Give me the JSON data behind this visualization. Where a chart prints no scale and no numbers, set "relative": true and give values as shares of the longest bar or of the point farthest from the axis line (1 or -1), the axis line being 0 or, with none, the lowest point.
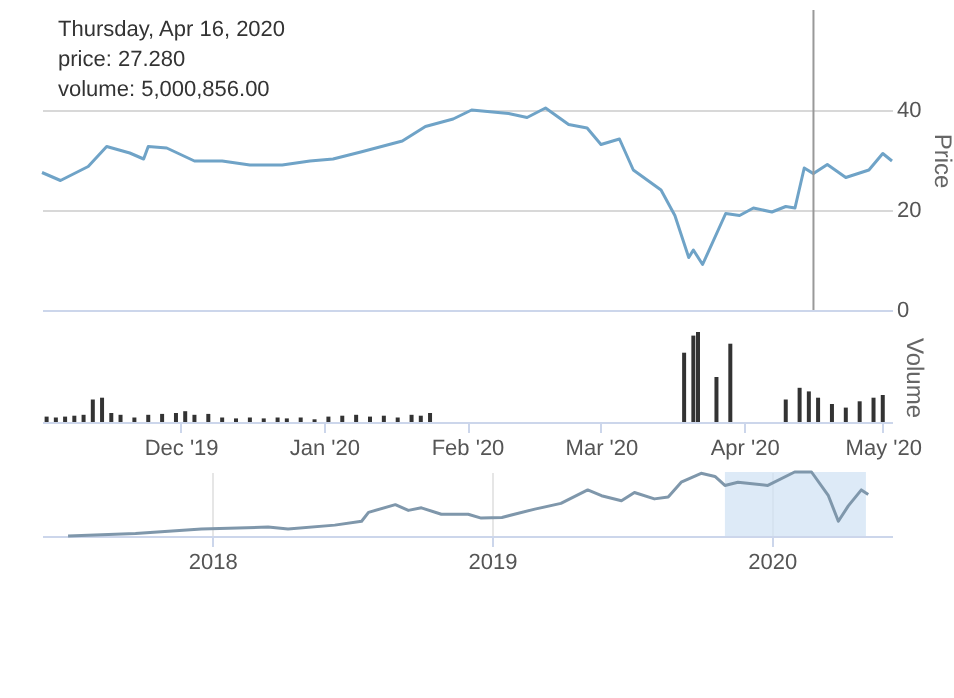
{
  "chart_data": [
    {
      "type": "line",
      "ylabel": "Price",
      "color": "#6fa3c7",
      "grid": "y",
      "tick_labels": "y",
      "xlim": [
        "2019-11-01",
        "2020-05-03"
      ],
      "ylim": [
        0,
        60
      ],
      "yticks": [
        0,
        20,
        40
      ],
      "x": [
        "2019-11-01",
        "2019-11-05",
        "2019-11-11",
        "2019-11-15",
        "2019-11-20",
        "2019-11-23",
        "2019-11-24",
        "2019-11-28",
        "2019-12-04",
        "2019-12-10",
        "2019-12-16",
        "2019-12-23",
        "2019-12-29",
        "2020-01-03",
        "2020-01-09",
        "2020-01-18",
        "2020-01-23",
        "2020-01-29",
        "2020-02-02",
        "2020-02-10",
        "2020-02-14",
        "2020-02-18",
        "2020-02-23",
        "2020-02-27",
        "2020-03-01",
        "2020-03-05",
        "2020-03-08",
        "2020-03-14",
        "2020-03-17",
        "2020-03-20",
        "2020-03-21",
        "2020-03-23",
        "2020-03-28",
        "2020-03-31",
        "2020-04-03",
        "2020-04-07",
        "2020-04-10",
        "2020-04-12",
        "2020-04-14",
        "2020-04-16",
        "2020-04-19",
        "2020-04-23",
        "2020-04-28",
        "2020-05-01",
        "2020-05-03"
      ],
      "values": [
        27.5,
        25.9,
        28.7,
        32.7,
        31.4,
        30.2,
        32.7,
        32.4,
        29.8,
        29.8,
        29.0,
        29.0,
        29.8,
        30.2,
        31.6,
        33.8,
        36.7,
        38.2,
        40.0,
        39.3,
        38.5,
        40.4,
        37.1,
        36.4,
        33.1,
        34.2,
        28.0,
        24.0,
        18.9,
        10.5,
        12.0,
        9.1,
        19.3,
        18.9,
        20.4,
        19.6,
        20.7,
        20.4,
        28.4,
        27.28,
        29.1,
        26.5,
        28.0,
        31.3,
        29.8
      ],
      "ref_lines": [
        {
          "axis": "x",
          "value": "2020-04-16",
          "color": "#999999"
        }
      ],
      "annotations": [
        "Thursday, Apr 16, 2020",
        "price: 27.280",
        "volume: 5,000,856.00"
      ]
    },
    {
      "type": "bar",
      "relative": true,
      "ylabel": "Volume",
      "color": "#333333",
      "xlim": [
        "2019-11-01",
        "2020-05-03"
      ],
      "xticks": [
        {
          "value": "2019-12-01",
          "label": "Dec '19"
        },
        {
          "value": "2020-01-01",
          "label": "Jan '20"
        },
        {
          "value": "2020-02-01",
          "label": "Feb '20"
        },
        {
          "value": "2020-03-01",
          "label": "Mar '20"
        },
        {
          "value": "2020-04-01",
          "label": "Apr '20"
        },
        {
          "value": "2020-05-01",
          "label": "May '20"
        }
      ],
      "x": [
        "2019-11-02",
        "2019-11-04",
        "2019-11-06",
        "2019-11-08",
        "2019-11-10",
        "2019-11-12",
        "2019-11-14",
        "2019-11-16",
        "2019-11-18",
        "2019-11-21",
        "2019-11-24",
        "2019-11-27",
        "2019-11-30",
        "2019-12-02",
        "2019-12-04",
        "2019-12-07",
        "2019-12-10",
        "2019-12-13",
        "2019-12-16",
        "2019-12-19",
        "2019-12-22",
        "2019-12-24",
        "2019-12-27",
        "2019-12-30",
        "2020-01-02",
        "2020-01-05",
        "2020-01-08",
        "2020-01-11",
        "2020-01-14",
        "2020-01-17",
        "2020-01-20",
        "2020-01-22",
        "2020-01-24",
        "2020-03-19",
        "2020-03-21",
        "2020-03-22",
        "2020-03-26",
        "2020-03-29",
        "2020-04-10",
        "2020-04-13",
        "2020-04-15",
        "2020-04-17",
        "2020-04-20",
        "2020-04-23",
        "2020-04-26",
        "2020-04-29",
        "2020-05-01"
      ],
      "values": [
        0.06,
        0.05,
        0.06,
        0.07,
        0.08,
        0.25,
        0.27,
        0.1,
        0.08,
        0.05,
        0.08,
        0.09,
        0.1,
        0.12,
        0.08,
        0.09,
        0.05,
        0.04,
        0.05,
        0.04,
        0.05,
        0.04,
        0.05,
        0.03,
        0.06,
        0.07,
        0.08,
        0.06,
        0.07,
        0.05,
        0.08,
        0.07,
        0.1,
        0.77,
        0.96,
        1.0,
        0.5,
        0.87,
        0.25,
        0.38,
        0.34,
        0.27,
        0.2,
        0.16,
        0.23,
        0.27,
        0.3
      ]
    },
    {
      "type": "line",
      "relative": true,
      "color": "#7f97ab",
      "grid": "x",
      "xlim": [
        "2017-05-24",
        "2020-06-06"
      ],
      "xticks": [
        {
          "value": "2018-01-01",
          "label": "2018"
        },
        {
          "value": "2019-01-01",
          "label": "2019"
        },
        {
          "value": "2020-01-01",
          "label": "2020"
        }
      ],
      "bands": [
        {
          "axis": "x",
          "from": "2019-11-01",
          "to": "2020-05-03",
          "color": "#cfe1f4"
        }
      ],
      "x": [
        "2017-06-27",
        "2017-09-23",
        "2017-12-18",
        "2018-03-15",
        "2018-04-10",
        "2018-06-10",
        "2018-07-15",
        "2018-07-24",
        "2018-08-28",
        "2018-09-14",
        "2018-10-01",
        "2018-10-27",
        "2018-12-01",
        "2018-12-18",
        "2019-01-14",
        "2019-02-26",
        "2019-04-01",
        "2019-05-06",
        "2019-05-24",
        "2019-06-19",
        "2019-07-06",
        "2019-08-01",
        "2019-08-19",
        "2019-09-05",
        "2019-10-01",
        "2019-10-19",
        "2019-11-01",
        "2019-11-18",
        "2019-12-27",
        "2020-01-31",
        "2020-02-22",
        "2020-03-15",
        "2020-03-28",
        "2020-04-10",
        "2020-04-27",
        "2020-05-06"
      ],
      "values": [
        0,
        0.04,
        0.11,
        0.14,
        0.11,
        0.17,
        0.23,
        0.37,
        0.49,
        0.4,
        0.44,
        0.34,
        0.34,
        0.28,
        0.29,
        0.42,
        0.51,
        0.72,
        0.63,
        0.55,
        0.68,
        0.58,
        0.61,
        0.84,
        0.98,
        0.93,
        0.79,
        0.84,
        0.79,
        1.0,
        1.0,
        0.63,
        0.23,
        0.47,
        0.72,
        0.65
      ]
    }
  ]
}
